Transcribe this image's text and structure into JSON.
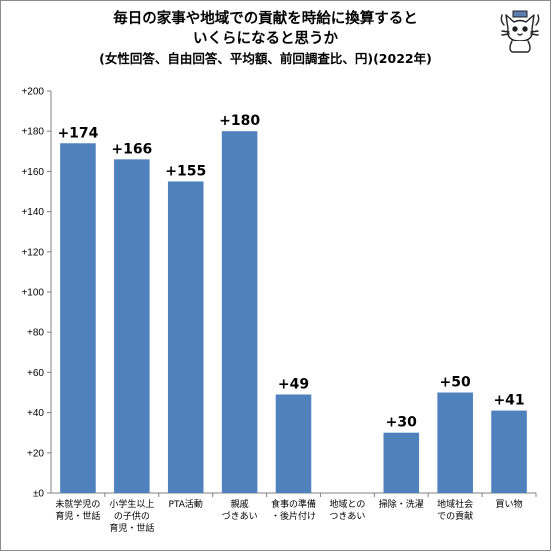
{
  "header": {
    "title_line1": "毎日の家事や地域での貢献を時給に換算すると",
    "title_line2": "いくらになると思うか",
    "subtitle": "(女性回答、自由回答、平均額、前回調査比、円)(2022年)"
  },
  "mascot": {
    "icon": "cat-mascot-icon"
  },
  "chart_data": {
    "type": "bar",
    "title": "毎日の家事や地域での貢献を時給に換算すると いくらになると思うか",
    "subtitle": "(女性回答、自由回答、平均額、前回調査比、円)(2022年)",
    "categories": [
      [
        "未就学児の",
        "育児・世話"
      ],
      [
        "小学生以上",
        "の子供の",
        "育児・世話"
      ],
      [
        "PTA活動"
      ],
      [
        "親戚",
        "づきあい"
      ],
      [
        "食事の準備",
        "・後片付け"
      ],
      [
        "地域との",
        "つきあい"
      ],
      [
        "掃除・洗濯"
      ],
      [
        "地域社会",
        "での貢献"
      ],
      [
        "買い物"
      ]
    ],
    "values": [
      174,
      166,
      155,
      180,
      49,
      0,
      30,
      50,
      41
    ],
    "data_labels": [
      "+174",
      "+166",
      "+155",
      "+180",
      "+49",
      "",
      "+30",
      "+50",
      "+41"
    ],
    "y_ticks": [
      0,
      20,
      40,
      60,
      80,
      100,
      120,
      140,
      160,
      180,
      200
    ],
    "y_tick_labels": [
      "±0",
      "+20",
      "+40",
      "+60",
      "+80",
      "+100",
      "+120",
      "+140",
      "+160",
      "+180",
      "+200"
    ],
    "ylim": [
      0,
      200
    ],
    "xlabel": "",
    "ylabel": "",
    "grid": false,
    "legend": "none",
    "bar_color": "#4f81bd",
    "axis_color": "#808080"
  }
}
